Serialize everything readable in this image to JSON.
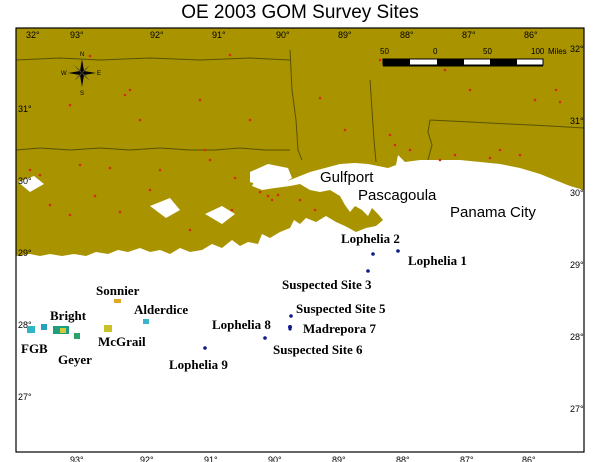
{
  "title": "OE 2003 GOM Survey Sites",
  "colors": {
    "land": "#a99400",
    "water": "#ffffff",
    "border": "#5a5200",
    "city_dot": "#d42a1a",
    "site_dot": "#0d1a8a",
    "frame": "#000000"
  },
  "longitude_labels": [
    "93°",
    "92°",
    "91°",
    "90°",
    "89°",
    "88°",
    "87°",
    "86°"
  ],
  "corner_longitude_label": "32°",
  "latitude_labels": [
    "32°",
    "31°",
    "30°",
    "29°",
    "28°",
    "27°"
  ],
  "scale_bar": {
    "labels": [
      "50",
      "0",
      "50",
      "100"
    ],
    "unit": "Miles"
  },
  "compass": {
    "name": "compass-rose-icon",
    "labels": [
      "N",
      "E",
      "S",
      "W"
    ]
  },
  "cities": [
    {
      "name": "Gulfport",
      "style": "sans"
    },
    {
      "name": "Pascagoula",
      "style": "sans"
    },
    {
      "name": "Panama City",
      "style": "sans"
    }
  ],
  "survey_sites": [
    {
      "name": "Lophelia 2",
      "marker": "dot"
    },
    {
      "name": "Lophelia 1",
      "marker": "dot"
    },
    {
      "name": "Suspected Site 3",
      "marker": "dot"
    },
    {
      "name": "Suspected Site 5",
      "marker": "dot"
    },
    {
      "name": "Madrepora 7",
      "marker": "dot"
    },
    {
      "name": "Lophelia 8",
      "marker": "dot"
    },
    {
      "name": "Suspected Site 6",
      "marker": "dot"
    },
    {
      "name": "Lophelia 9",
      "marker": "dot"
    },
    {
      "name": "Sonnier",
      "marker": "bathymetry-patch"
    },
    {
      "name": "Alderdice",
      "marker": "bathymetry-patch"
    },
    {
      "name": "Bright",
      "marker": "bathymetry-patch"
    },
    {
      "name": "McGrail",
      "marker": "bathymetry-patch"
    },
    {
      "name": "FGB",
      "marker": "bathymetry-patch"
    },
    {
      "name": "Geyer",
      "marker": "bathymetry-patch"
    }
  ]
}
